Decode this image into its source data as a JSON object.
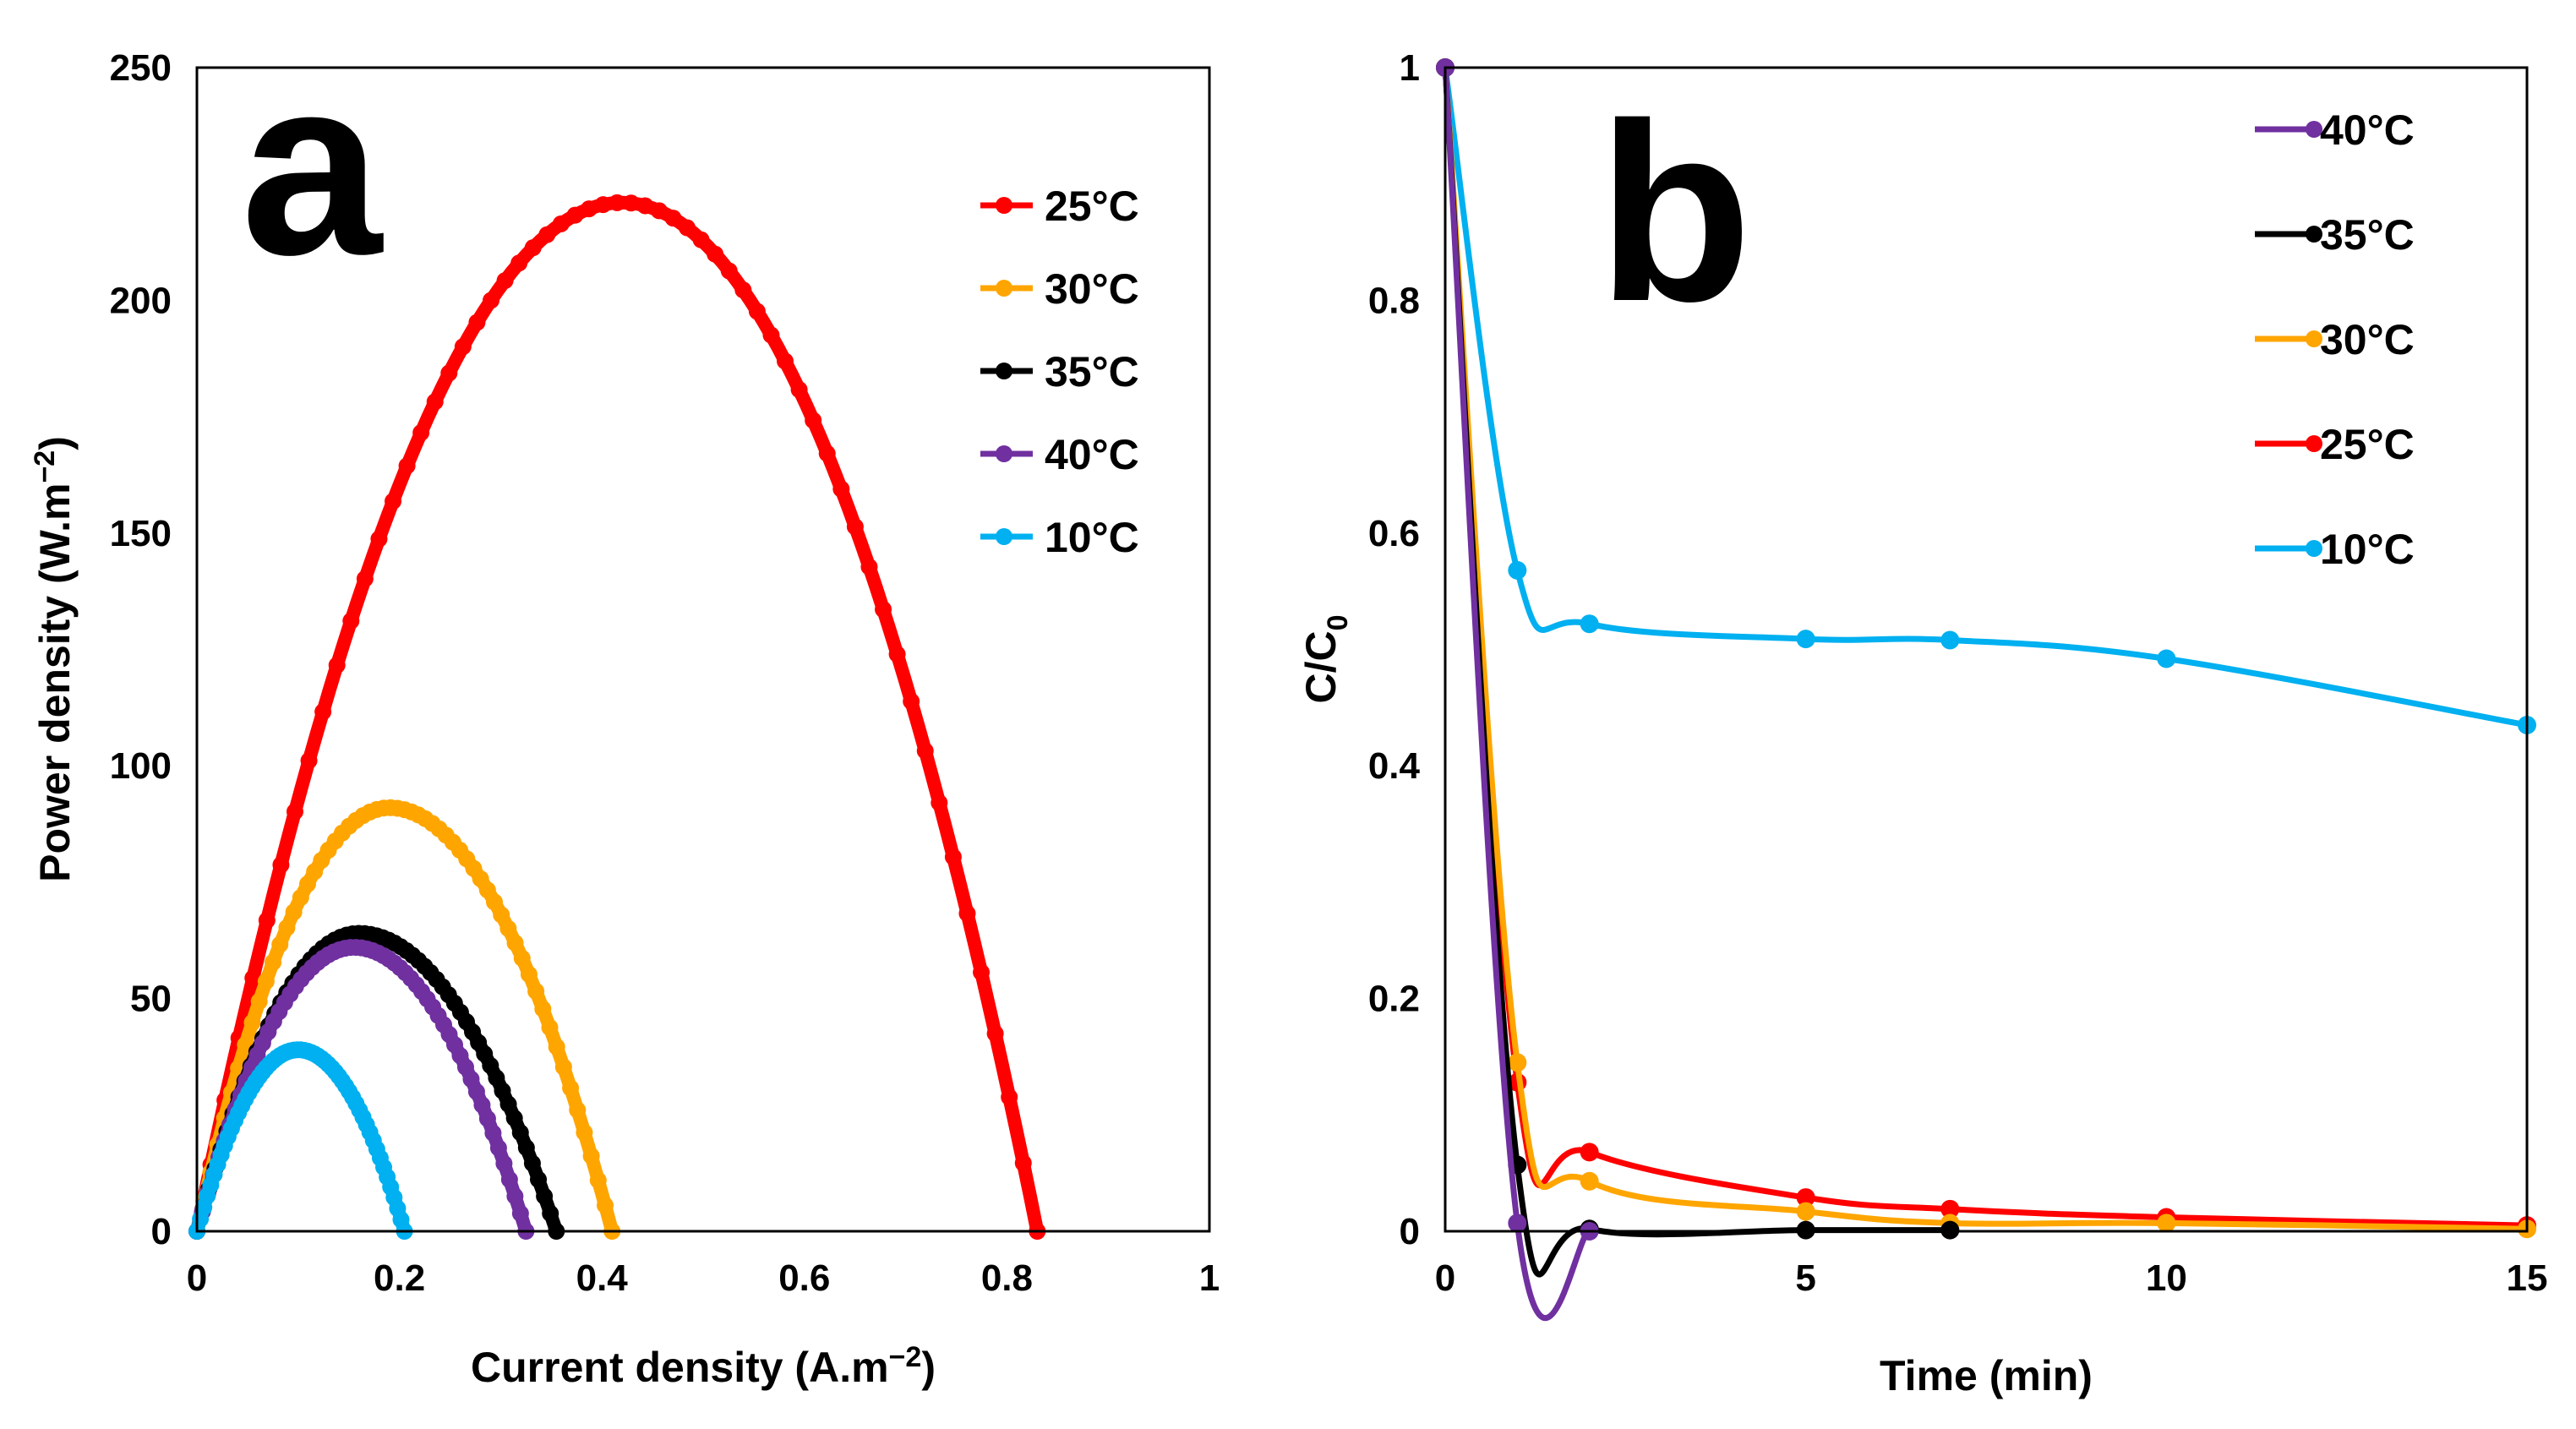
{
  "chart_data": [
    {
      "type": "line",
      "panel_label": "a",
      "xlabel_main": "Current density (A.m",
      "xlabel_sup": "−2",
      "xlabel_end": ")",
      "ylabel_main": "Power density (W.m",
      "ylabel_sup": "−2",
      "ylabel_end": ")",
      "xlim": [
        0,
        1
      ],
      "ylim": [
        0,
        250
      ],
      "xticks": [
        "0",
        "0.2",
        "0.4",
        "0.6",
        "0.8",
        "1"
      ],
      "xtick_values": [
        0,
        0.2,
        0.4,
        0.6,
        0.8,
        1
      ],
      "yticks": [
        "0",
        "50",
        "100",
        "150",
        "200",
        "250"
      ],
      "ytick_values": [
        0,
        50,
        100,
        150,
        200,
        250
      ],
      "grid": false,
      "legend_position": "top-right",
      "series": [
        {
          "name": "25°C",
          "color": "#ff0000",
          "peak_x": 0.42,
          "peak_y": 221,
          "end_x": 0.83
        },
        {
          "name": "30°C",
          "color": "#ffa500",
          "peak_x": 0.19,
          "peak_y": 91,
          "end_x": 0.41
        },
        {
          "name": "35°C",
          "color": "#000000",
          "peak_x": 0.16,
          "peak_y": 64,
          "end_x": 0.355
        },
        {
          "name": "40°C",
          "color": "#7030a0",
          "peak_x": 0.155,
          "peak_y": 61,
          "end_x": 0.325
        },
        {
          "name": "10°C",
          "color": "#00b0f0",
          "peak_x": 0.1,
          "peak_y": 39,
          "end_x": 0.205
        }
      ]
    },
    {
      "type": "line",
      "panel_label": "b",
      "xlabel": "Time (min)",
      "ylabel_main": "C/C",
      "ylabel_sub": "0",
      "xlim": [
        0,
        15
      ],
      "ylim": [
        0,
        1
      ],
      "xticks": [
        "0",
        "5",
        "10",
        "15"
      ],
      "xtick_values": [
        0,
        5,
        10,
        15
      ],
      "yticks": [
        "0",
        "0.2",
        "0.4",
        "0.6",
        "0.8",
        "1"
      ],
      "ytick_values": [
        0,
        0.2,
        0.4,
        0.6,
        0.8,
        1
      ],
      "grid": false,
      "legend_position": "top-right",
      "series": [
        {
          "name": "40°C",
          "color": "#7030a0",
          "x": [
            0,
            1,
            2
          ],
          "y": [
            1,
            0.007,
            0
          ]
        },
        {
          "name": "35°C",
          "color": "#000000",
          "x": [
            0,
            1,
            2,
            5,
            7
          ],
          "y": [
            1,
            0.057,
            0.002,
            0.001,
            0.001
          ]
        },
        {
          "name": "30°C",
          "color": "#ffa500",
          "x": [
            0,
            1,
            2,
            5,
            7,
            10,
            15
          ],
          "y": [
            1,
            0.145,
            0.043,
            0.017,
            0.007,
            0.007,
            0.002
          ]
        },
        {
          "name": "25°C",
          "color": "#ff0000",
          "x": [
            0,
            1,
            2,
            5,
            7,
            10,
            15
          ],
          "y": [
            1,
            0.128,
            0.068,
            0.029,
            0.019,
            0.012,
            0.005
          ]
        },
        {
          "name": "10°C",
          "color": "#00b0f0",
          "x": [
            0,
            1,
            2,
            5,
            7,
            10,
            15
          ],
          "y": [
            1,
            0.568,
            0.522,
            0.509,
            0.508,
            0.492,
            0.435
          ]
        }
      ]
    }
  ]
}
